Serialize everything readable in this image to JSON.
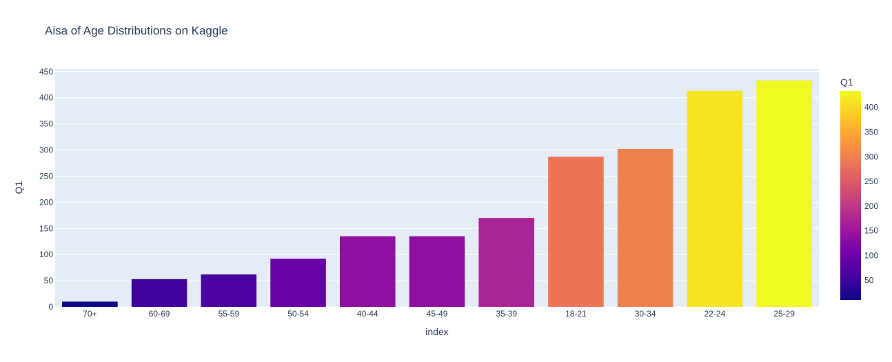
{
  "chart_data": {
    "type": "bar",
    "title": "Aisa of Age Distributions on Kaggle",
    "xlabel": "index",
    "ylabel": "Q1",
    "categories": [
      "70+",
      "60-69",
      "55-59",
      "50-54",
      "40-44",
      "45-49",
      "35-39",
      "18-21",
      "30-34",
      "22-24",
      "25-29"
    ],
    "values": [
      10,
      53,
      62,
      92,
      135,
      135,
      170,
      287,
      302,
      413,
      433
    ],
    "ylim": [
      0,
      455
    ],
    "yticks": [
      0,
      50,
      100,
      150,
      200,
      250,
      300,
      350,
      400,
      450
    ],
    "grid": true,
    "plot_bgcolor": "#E5ECF6",
    "colorbar": {
      "title": "Q1",
      "range": [
        10,
        433
      ],
      "ticks": [
        50,
        100,
        150,
        200,
        250,
        300,
        350,
        400
      ],
      "colorscale": [
        "#0d0887",
        "#46039f",
        "#7201a8",
        "#9c179e",
        "#bd3786",
        "#d8576b",
        "#ed7953",
        "#fb9f3a",
        "#fdca26",
        "#f0f921"
      ]
    }
  }
}
